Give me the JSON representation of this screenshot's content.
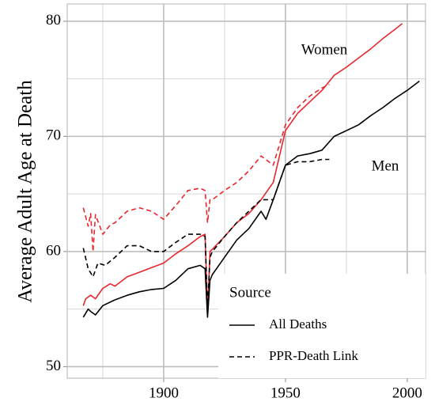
{
  "chart_data": {
    "type": "line",
    "y_label": "Average Adult Age at Death",
    "xlim": [
      1860.4,
      2007.5
    ],
    "ylim": [
      49,
      81.5
    ],
    "xticks": [
      1900,
      1950,
      2000
    ],
    "yticks": [
      50,
      60,
      70,
      80
    ],
    "xminor": [
      1875,
      1925,
      1975
    ],
    "yminor": [
      55,
      65,
      75
    ],
    "grid": true,
    "annotations": [
      {
        "text": "Women"
      },
      {
        "text": "Men"
      }
    ],
    "legend": {
      "title": "Source",
      "position": "bottom-right",
      "entries": [
        {
          "label": "All Deaths",
          "dashed": false
        },
        {
          "label": "PPR-Death Link",
          "dashed": true
        }
      ]
    },
    "series": [
      {
        "color": "#e8262d",
        "dashed": false,
        "x": [
          1867,
          1868,
          1870,
          1872,
          1875,
          1878,
          1880,
          1885,
          1890,
          1895,
          1900,
          1905,
          1910,
          1915,
          1917,
          1918,
          1919,
          1920,
          1925,
          1930,
          1935,
          1940,
          1945,
          1950,
          1955,
          1960,
          1965,
          1970,
          1975,
          1980,
          1985,
          1990,
          1995,
          1998
        ],
        "values": [
          55.3,
          55.9,
          56.2,
          55.9,
          56.8,
          57.2,
          57.0,
          57.8,
          58.2,
          58.6,
          59.0,
          59.8,
          60.5,
          61.3,
          61.5,
          54.5,
          60.0,
          60.2,
          61.3,
          62.5,
          63.3,
          64.5,
          66.0,
          70.5,
          72.0,
          73.0,
          74.0,
          75.3,
          76.0,
          76.8,
          77.6,
          78.5,
          79.3,
          79.8
        ]
      },
      {
        "color": "#e8262d",
        "dashed": true,
        "x": [
          1867,
          1868,
          1869,
          1870,
          1871,
          1872,
          1875,
          1878,
          1880,
          1885,
          1890,
          1895,
          1900,
          1905,
          1910,
          1915,
          1917,
          1918,
          1919,
          1920,
          1925,
          1930,
          1935,
          1940,
          1945,
          1950,
          1955,
          1960,
          1965,
          1968
        ],
        "values": [
          63.8,
          63.0,
          62.2,
          63.3,
          60.0,
          63.2,
          61.5,
          62.3,
          62.5,
          63.5,
          63.8,
          63.5,
          62.8,
          64.0,
          65.3,
          65.5,
          65.3,
          62.5,
          64.5,
          64.5,
          65.3,
          66.0,
          67.0,
          68.3,
          67.5,
          71.0,
          72.5,
          73.5,
          74.2,
          74.5
        ]
      },
      {
        "color": "#000000",
        "dashed": false,
        "x": [
          1867,
          1869,
          1870,
          1872,
          1875,
          1878,
          1880,
          1885,
          1890,
          1895,
          1900,
          1905,
          1910,
          1915,
          1917,
          1918,
          1919,
          1920,
          1925,
          1930,
          1935,
          1940,
          1942,
          1945,
          1950,
          1955,
          1960,
          1965,
          1970,
          1975,
          1980,
          1985,
          1990,
          1995,
          2000,
          2005
        ],
        "values": [
          54.3,
          55.0,
          54.8,
          54.5,
          55.3,
          55.6,
          55.8,
          56.2,
          56.5,
          56.7,
          56.8,
          57.5,
          58.5,
          58.8,
          58.5,
          54.3,
          57.5,
          58.0,
          59.5,
          61.0,
          62.0,
          63.5,
          62.8,
          64.5,
          67.5,
          68.3,
          68.5,
          68.8,
          70.0,
          70.5,
          71.0,
          71.8,
          72.5,
          73.3,
          74.0,
          74.8
        ]
      },
      {
        "color": "#000000",
        "dashed": true,
        "x": [
          1867,
          1869,
          1871,
          1873,
          1876,
          1880,
          1885,
          1890,
          1895,
          1900,
          1905,
          1910,
          1915,
          1917,
          1918,
          1919,
          1920,
          1925,
          1930,
          1935,
          1940,
          1945,
          1950,
          1955,
          1960,
          1965,
          1968
        ],
        "values": [
          60.3,
          58.5,
          57.8,
          59.0,
          58.8,
          59.5,
          60.5,
          60.5,
          60.0,
          60.0,
          60.8,
          61.5,
          61.5,
          61.3,
          55.0,
          59.5,
          60.0,
          61.3,
          62.5,
          63.5,
          64.5,
          64.5,
          67.5,
          67.8,
          67.8,
          68.0,
          68.0
        ]
      }
    ]
  }
}
